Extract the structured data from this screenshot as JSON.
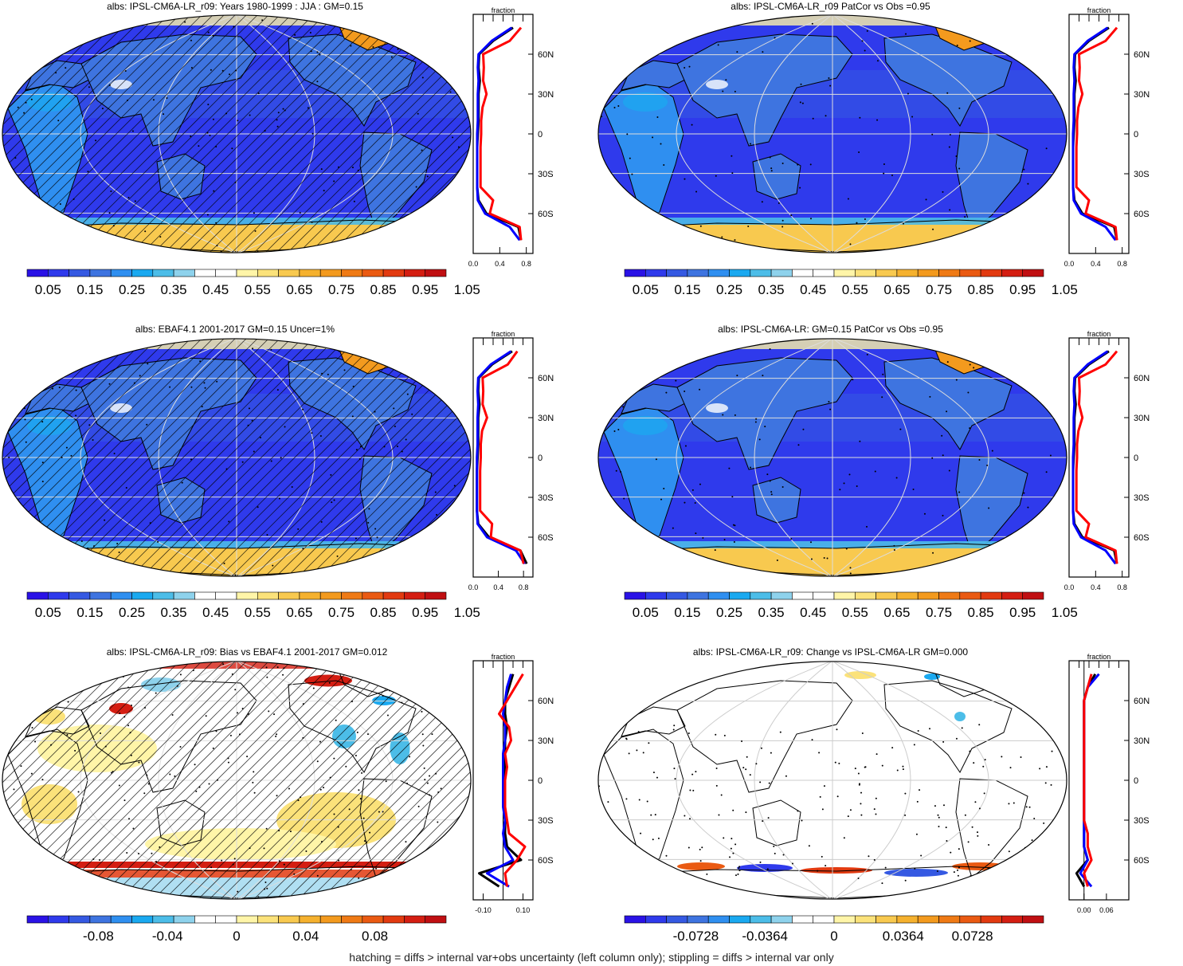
{
  "palette": [
    "#2a12e6",
    "#2f3aec",
    "#3559e2",
    "#3e74e0",
    "#2f8ff0",
    "#1aa9f0",
    "#4cbde8",
    "#8ed2ec",
    "#ffffff",
    "#ffffff",
    "#fff5a8",
    "#fbe27a",
    "#f8c94f",
    "#f5b12e",
    "#f39a1e",
    "#ef7a15",
    "#ea5a12",
    "#e23a10",
    "#d41e12",
    "#c00f12"
  ],
  "footnote": "hatching = diffs > internal var+obs uncertainty (left column only); stippling = diffs > internal var only",
  "chart_data": [
    {
      "type": "heatmap",
      "title": "albs: IPSL-CM6A-LR_r09: Years 1980-1999 : JJA : GM=0.15",
      "colorbar_labels": [
        "0.05",
        "0.15",
        "0.25",
        "0.35",
        "0.45",
        "0.55",
        "0.65",
        "0.75",
        "0.85",
        "0.95",
        "1.05"
      ],
      "zonal_mean": {
        "xlabel": "fraction",
        "xticks": [
          "0.0",
          "0.4",
          "0.8"
        ],
        "xlim": [
          0,
          0.9
        ],
        "lat_ticks": [
          "60N",
          "30N",
          "0",
          "30S",
          "60S"
        ],
        "lat": [
          80,
          70,
          60,
          50,
          40,
          30,
          20,
          10,
          0,
          -10,
          -20,
          -30,
          -40,
          -50,
          -60,
          -70,
          -80
        ],
        "series": [
          {
            "color": "#000000",
            "values": [
              0.6,
              0.3,
              0.09,
              0.08,
              0.1,
              0.08,
              0.08,
              0.08,
              0.07,
              0.06,
              0.06,
              0.06,
              0.06,
              0.08,
              0.2,
              0.68,
              0.72
            ]
          },
          {
            "color": "#0000ff",
            "values": [
              0.58,
              0.28,
              0.08,
              0.07,
              0.08,
              0.07,
              0.07,
              0.07,
              0.06,
              0.06,
              0.06,
              0.06,
              0.06,
              0.07,
              0.18,
              0.55,
              0.7
            ]
          },
          {
            "color": "#ff0000",
            "values": [
              0.72,
              0.55,
              0.15,
              0.16,
              0.15,
              0.2,
              0.14,
              0.12,
              0.12,
              0.11,
              0.11,
              0.11,
              0.11,
              0.3,
              0.25,
              0.7,
              0.72
            ]
          }
        ]
      }
    },
    {
      "type": "heatmap",
      "title": "albs: IPSL-CM6A-LR_r09 PatCor vs Obs =0.95",
      "colorbar_labels": [
        "0.05",
        "0.15",
        "0.25",
        "0.35",
        "0.45",
        "0.55",
        "0.65",
        "0.75",
        "0.85",
        "0.95",
        "1.05"
      ],
      "zonal_mean": {
        "xlabel": "fraction",
        "xticks": [
          "0.0",
          "0.4",
          "0.8"
        ],
        "xlim": [
          0,
          0.9
        ],
        "lat_ticks": [
          "60N",
          "30N",
          "0",
          "30S",
          "60S"
        ],
        "lat": [
          80,
          70,
          60,
          50,
          40,
          30,
          20,
          10,
          0,
          -10,
          -20,
          -30,
          -40,
          -50,
          -60,
          -70,
          -80
        ],
        "series": [
          {
            "color": "#000000",
            "values": [
              0.6,
              0.3,
              0.09,
              0.08,
              0.1,
              0.08,
              0.08,
              0.08,
              0.07,
              0.06,
              0.06,
              0.06,
              0.06,
              0.08,
              0.2,
              0.68,
              0.72
            ]
          },
          {
            "color": "#0000ff",
            "values": [
              0.58,
              0.28,
              0.08,
              0.07,
              0.08,
              0.07,
              0.07,
              0.07,
              0.06,
              0.06,
              0.06,
              0.06,
              0.06,
              0.07,
              0.18,
              0.55,
              0.7
            ]
          },
          {
            "color": "#ff0000",
            "values": [
              0.72,
              0.55,
              0.15,
              0.16,
              0.15,
              0.2,
              0.14,
              0.12,
              0.12,
              0.11,
              0.11,
              0.11,
              0.11,
              0.3,
              0.25,
              0.7,
              0.72
            ]
          }
        ]
      }
    },
    {
      "type": "heatmap",
      "title": "albs: EBAF4.1 2001-2017 GM=0.15 Uncer=1%",
      "colorbar_labels": [
        "0.05",
        "0.15",
        "0.25",
        "0.35",
        "0.45",
        "0.55",
        "0.65",
        "0.75",
        "0.85",
        "0.95",
        "1.05"
      ],
      "zonal_mean": {
        "xlabel": "fraction",
        "xticks": [
          "0.0",
          "0.4",
          "0.8"
        ],
        "xlim": [
          0,
          0.95
        ],
        "lat_ticks": [
          "60N",
          "30N",
          "0",
          "30S",
          "60S"
        ],
        "lat": [
          80,
          70,
          60,
          50,
          40,
          30,
          20,
          10,
          0,
          -10,
          -20,
          -30,
          -40,
          -50,
          -60,
          -70,
          -80
        ],
        "series": [
          {
            "color": "#000000",
            "values": [
              0.62,
              0.3,
              0.09,
              0.08,
              0.1,
              0.08,
              0.08,
              0.08,
              0.07,
              0.06,
              0.06,
              0.06,
              0.06,
              0.08,
              0.25,
              0.75,
              0.85
            ]
          },
          {
            "color": "#0000ff",
            "values": [
              0.6,
              0.28,
              0.08,
              0.07,
              0.08,
              0.07,
              0.07,
              0.07,
              0.06,
              0.06,
              0.06,
              0.06,
              0.06,
              0.07,
              0.22,
              0.68,
              0.82
            ]
          },
          {
            "color": "#ff0000",
            "values": [
              0.7,
              0.55,
              0.15,
              0.16,
              0.15,
              0.22,
              0.14,
              0.12,
              0.12,
              0.11,
              0.11,
              0.11,
              0.11,
              0.3,
              0.28,
              0.75,
              0.8
            ]
          }
        ]
      }
    },
    {
      "type": "heatmap",
      "title": "albs: IPSL-CM6A-LR: GM=0.15 PatCor vs Obs =0.95",
      "colorbar_labels": [
        "0.05",
        "0.15",
        "0.25",
        "0.35",
        "0.45",
        "0.55",
        "0.65",
        "0.75",
        "0.85",
        "0.95",
        "1.05"
      ],
      "zonal_mean": {
        "xlabel": "fraction",
        "xticks": [
          "0.0",
          "0.4",
          "0.8"
        ],
        "xlim": [
          0,
          0.9
        ],
        "lat_ticks": [
          "60N",
          "30N",
          "0",
          "30S",
          "60S"
        ],
        "lat": [
          80,
          70,
          60,
          50,
          40,
          30,
          20,
          10,
          0,
          -10,
          -20,
          -30,
          -40,
          -50,
          -60,
          -70,
          -80
        ],
        "series": [
          {
            "color": "#000000",
            "values": [
              0.6,
              0.3,
              0.09,
              0.08,
              0.1,
              0.08,
              0.08,
              0.08,
              0.07,
              0.06,
              0.06,
              0.06,
              0.06,
              0.08,
              0.2,
              0.68,
              0.72
            ]
          },
          {
            "color": "#0000ff",
            "values": [
              0.58,
              0.28,
              0.08,
              0.07,
              0.08,
              0.07,
              0.07,
              0.07,
              0.06,
              0.06,
              0.06,
              0.06,
              0.06,
              0.07,
              0.18,
              0.55,
              0.7
            ]
          },
          {
            "color": "#ff0000",
            "values": [
              0.72,
              0.55,
              0.15,
              0.16,
              0.15,
              0.2,
              0.14,
              0.12,
              0.12,
              0.11,
              0.11,
              0.11,
              0.11,
              0.3,
              0.25,
              0.7,
              0.72
            ]
          }
        ]
      }
    },
    {
      "type": "heatmap",
      "title": "albs: IPSL-CM6A-LR_r09: Bias vs EBAF4.1 2001-2017 GM=0.012",
      "colorbar_labels": [
        "-0.08",
        "-0.04",
        "0",
        "0.04",
        "0.08"
      ],
      "zonal_mean": {
        "xlabel": "fraction",
        "xticks": [
          "-0.10",
          "0.10"
        ],
        "xlim": [
          -0.15,
          0.15
        ],
        "lat_ticks": [
          "60N",
          "30N",
          "0",
          "30S",
          "60S"
        ],
        "lat": [
          80,
          70,
          60,
          50,
          40,
          30,
          20,
          10,
          0,
          -10,
          -20,
          -30,
          -40,
          -50,
          -60,
          -70,
          -80
        ],
        "series": [
          {
            "color": "#000000",
            "values": [
              0.05,
              0.03,
              0.01,
              0.01,
              0.02,
              0.01,
              0.01,
              0.01,
              0.0,
              0.0,
              0.01,
              0.01,
              0.01,
              0.02,
              0.09,
              -0.12,
              -0.02
            ]
          },
          {
            "color": "#0000ff",
            "values": [
              0.04,
              0.02,
              0.01,
              0.0,
              0.01,
              0.01,
              0.0,
              0.0,
              0.0,
              0.0,
              0.0,
              0.01,
              0.0,
              0.01,
              0.05,
              -0.08,
              0.03
            ]
          },
          {
            "color": "#ff0000",
            "values": [
              0.1,
              0.06,
              0.02,
              -0.02,
              0.03,
              0.04,
              0.01,
              0.02,
              0.01,
              0.01,
              0.01,
              0.02,
              0.03,
              0.11,
              0.07,
              0.01,
              0.02
            ]
          }
        ]
      }
    },
    {
      "type": "heatmap",
      "title": "albs: IPSL-CM6A-LR_r09: Change vs IPSL-CM6A-LR GM=0.000",
      "colorbar_labels": [
        "-0.0728",
        "-0.0364",
        "0",
        "0.0364",
        "0.0728"
      ],
      "zonal_mean": {
        "xlabel": "fraction",
        "xticks": [
          "0.00",
          "0.06"
        ],
        "xlim": [
          -0.04,
          0.12
        ],
        "lat_ticks": [
          "60N",
          "30N",
          "0",
          "30S",
          "60S"
        ],
        "lat": [
          80,
          70,
          60,
          50,
          40,
          30,
          20,
          10,
          0,
          -10,
          -20,
          -30,
          -40,
          -50,
          -60,
          -70,
          -80
        ],
        "series": [
          {
            "color": "#000000",
            "values": [
              0.03,
              0.01,
              0.0,
              0.0,
              0.0,
              0.0,
              0.0,
              0.0,
              0.0,
              0.0,
              0.0,
              0.0,
              0.0,
              0.0,
              0.01,
              -0.02,
              0.0
            ]
          },
          {
            "color": "#0000ff",
            "values": [
              0.04,
              0.01,
              0.0,
              0.0,
              0.0,
              0.0,
              0.0,
              0.0,
              0.0,
              0.0,
              0.0,
              0.0,
              0.0,
              0.0,
              0.01,
              -0.01,
              0.02
            ]
          },
          {
            "color": "#ff0000",
            "values": [
              0.02,
              0.01,
              0.0,
              0.0,
              0.0,
              0.0,
              0.0,
              0.0,
              0.0,
              0.0,
              0.0,
              0.0,
              0.01,
              0.01,
              0.02,
              0.0,
              0.01
            ]
          }
        ]
      }
    }
  ]
}
